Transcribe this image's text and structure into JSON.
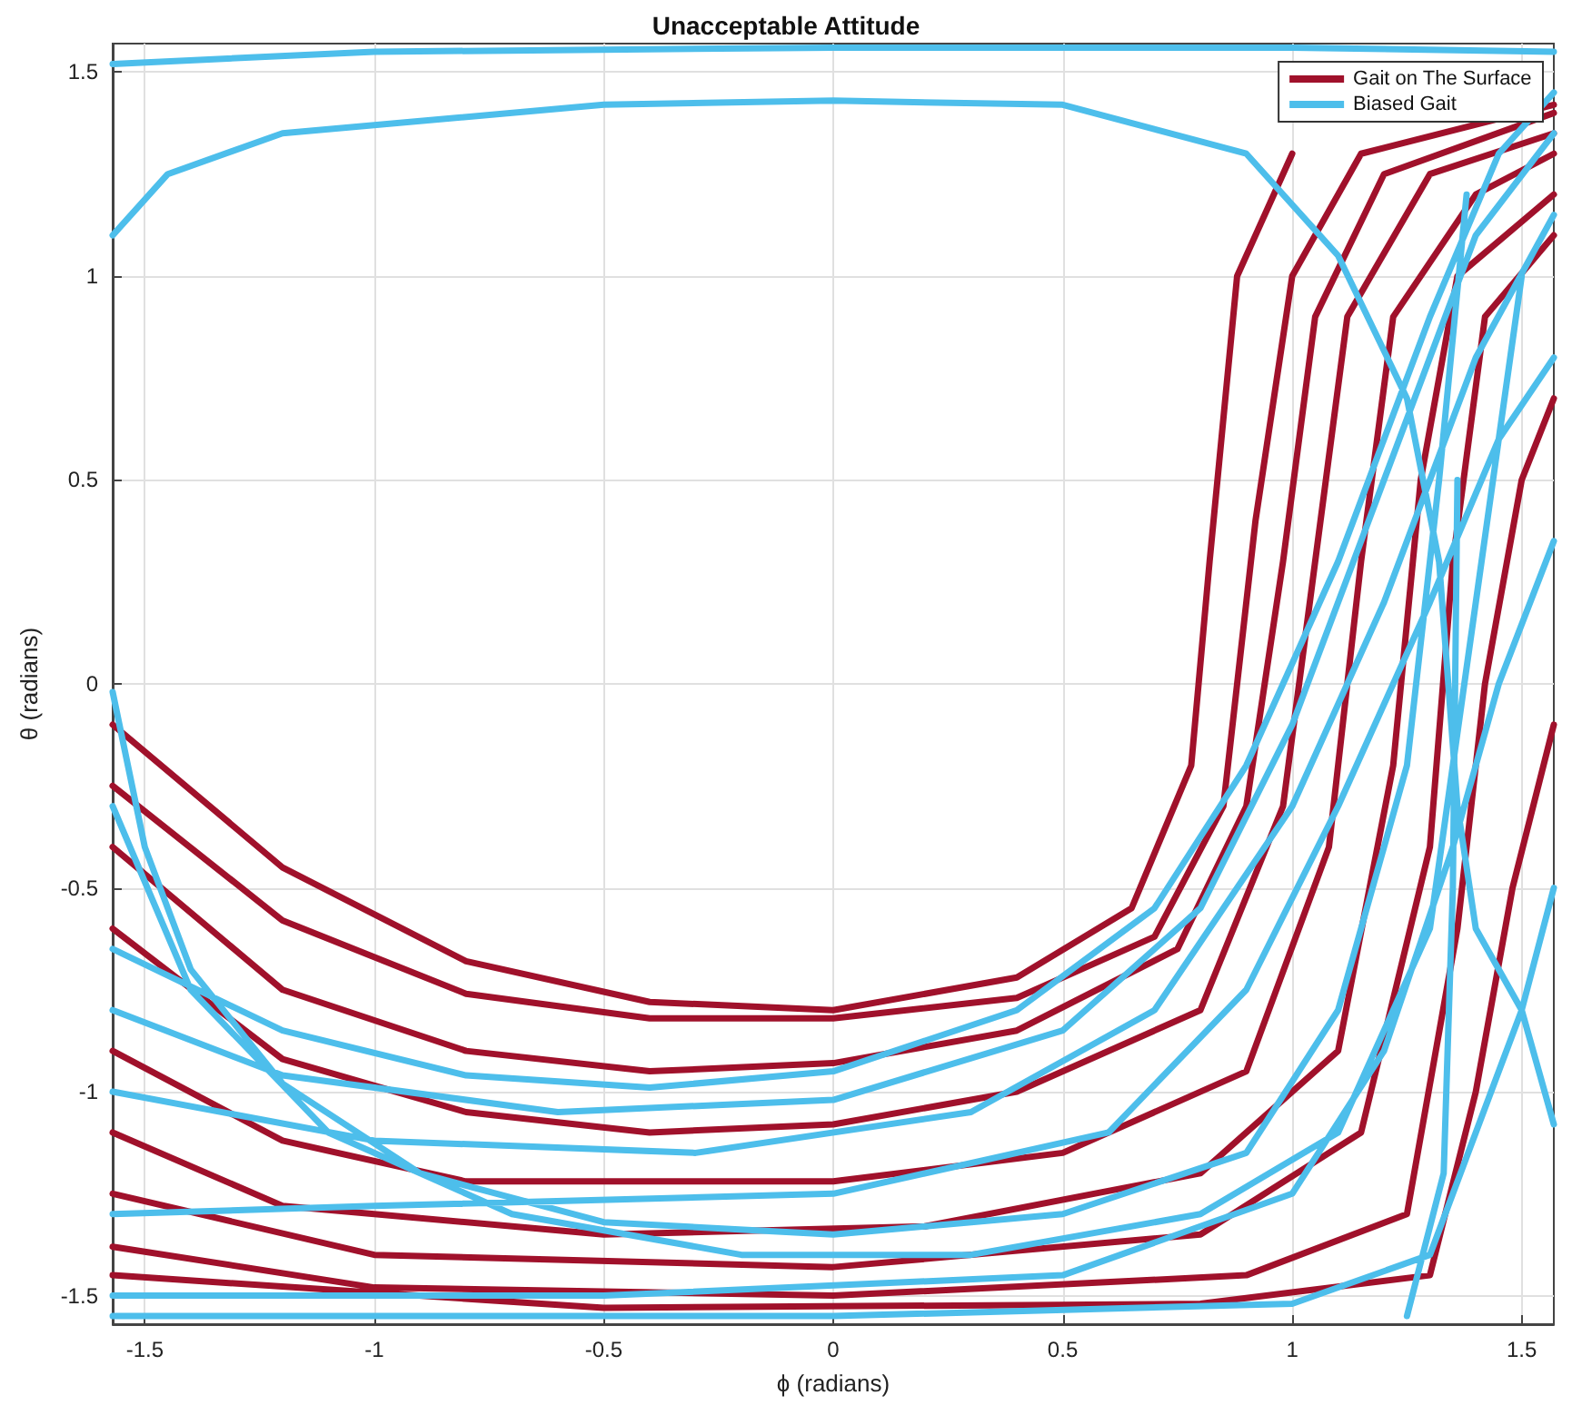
{
  "chart_data": {
    "type": "line",
    "title": "Unacceptable Attitude",
    "xlabel": "ϕ (radians)",
    "ylabel": "θ (radians)",
    "xlim": [
      -1.57,
      1.57
    ],
    "ylim": [
      -1.57,
      1.57
    ],
    "xticks": [
      -1.5,
      -1,
      -0.5,
      0,
      0.5,
      1,
      1.5
    ],
    "yticks": [
      -1.5,
      -1,
      -0.5,
      0,
      0.5,
      1,
      1.5
    ],
    "grid": true,
    "legend": "top right",
    "marker": "none",
    "line_style": "solid",
    "series": [
      {
        "name": "Gait on The Surface",
        "color": "#a0112b",
        "x": [
          -1.57,
          -1.2,
          -0.8,
          -0.4,
          0,
          0.4,
          0.65,
          0.78,
          0.82,
          0.88,
          1.0,
          null,
          -1.57,
          -1.2,
          -0.8,
          -0.4,
          0,
          0.4,
          0.7,
          0.85,
          0.92,
          1.0,
          1.15,
          1.57,
          null,
          -1.57,
          -1.2,
          -0.8,
          -0.4,
          0,
          0.4,
          0.75,
          0.9,
          0.98,
          1.05,
          1.2,
          1.57,
          null,
          -1.57,
          -1.2,
          -0.8,
          -0.4,
          0,
          0.4,
          0.8,
          0.98,
          1.05,
          1.12,
          1.3,
          1.57,
          null,
          -1.57,
          -1.2,
          -0.8,
          0,
          0.5,
          0.9,
          1.08,
          1.15,
          1.22,
          1.4,
          1.57,
          null,
          -1.57,
          -1.2,
          -0.5,
          0.2,
          0.8,
          1.1,
          1.22,
          1.28,
          1.36,
          1.57,
          null,
          -1.57,
          -1,
          0,
          0.8,
          1.15,
          1.3,
          1.35,
          1.42,
          1.57,
          null,
          -1.57,
          -1,
          0,
          0.9,
          1.25,
          1.36,
          1.42,
          1.5,
          1.57,
          null,
          -1.57,
          -0.5,
          0.8,
          1.3,
          1.4,
          1.48,
          1.57
        ],
        "values": [
          -0.1,
          -0.45,
          -0.68,
          -0.78,
          -0.8,
          -0.72,
          -0.55,
          -0.2,
          0.3,
          1.0,
          1.3,
          null,
          -0.25,
          -0.58,
          -0.76,
          -0.82,
          -0.82,
          -0.77,
          -0.62,
          -0.3,
          0.4,
          1.0,
          1.3,
          1.42,
          null,
          -0.4,
          -0.75,
          -0.9,
          -0.95,
          -0.93,
          -0.85,
          -0.65,
          -0.3,
          0.3,
          0.9,
          1.25,
          1.4,
          null,
          -0.6,
          -0.92,
          -1.05,
          -1.1,
          -1.08,
          -1.0,
          -0.8,
          -0.3,
          0.3,
          0.9,
          1.25,
          1.35,
          null,
          -0.9,
          -1.12,
          -1.22,
          -1.22,
          -1.15,
          -0.95,
          -0.4,
          0.3,
          0.9,
          1.2,
          1.3,
          null,
          -1.1,
          -1.28,
          -1.35,
          -1.33,
          -1.2,
          -0.9,
          -0.2,
          0.5,
          1.0,
          1.2,
          null,
          -1.25,
          -1.4,
          -1.43,
          -1.35,
          -1.1,
          -0.4,
          0.3,
          0.9,
          1.1,
          null,
          -1.38,
          -1.48,
          -1.5,
          -1.45,
          -1.3,
          -0.6,
          0.0,
          0.5,
          0.7,
          null,
          -1.45,
          -1.53,
          -1.52,
          -1.45,
          -1.0,
          -0.5,
          -0.1
        ]
      },
      {
        "name": "Biased Gait",
        "color": "#4dbeeb",
        "x": [
          -1.57,
          -1,
          0,
          1,
          1.57,
          null,
          -1.57,
          -1.45,
          -1.2,
          -0.5,
          0,
          0.5,
          0.9,
          1.1,
          1.25,
          1.32,
          1.36,
          1.4,
          1.5,
          1.57,
          null,
          -1.57,
          -1.5,
          -1.4,
          -1.2,
          -0.9,
          -0.5,
          0,
          0.5,
          0.9,
          1.1,
          1.25,
          1.32,
          1.38,
          null,
          -1.57,
          -1.2,
          -0.8,
          -0.4,
          0,
          0.4,
          0.7,
          0.9,
          1.1,
          1.3,
          1.45,
          1.57,
          null,
          -1.57,
          -1.2,
          -0.6,
          0,
          0.5,
          0.8,
          1.0,
          1.2,
          1.4,
          1.57,
          null,
          -1.57,
          -1,
          -0.3,
          0.3,
          0.7,
          1.0,
          1.2,
          1.4,
          1.57,
          null,
          -1.57,
          -1,
          0,
          0.6,
          0.9,
          1.1,
          1.3,
          1.45,
          1.57,
          null,
          -1.57,
          -0.5,
          0.5,
          1.0,
          1.2,
          1.35,
          1.45,
          1.57,
          null,
          -1.57,
          0,
          1.0,
          1.3,
          1.4,
          1.5,
          1.57,
          null,
          1.25,
          1.33,
          1.35,
          1.36,
          null,
          -1.57,
          -1.4,
          -1.1,
          -0.7,
          -0.2,
          0.3,
          0.8,
          1.1,
          1.3,
          1.4,
          1.5
        ],
        "values": [
          1.52,
          1.55,
          1.56,
          1.56,
          1.55,
          null,
          1.1,
          1.25,
          1.35,
          1.42,
          1.43,
          1.42,
          1.3,
          1.05,
          0.7,
          0.3,
          -0.3,
          -0.6,
          -0.8,
          -1.08,
          null,
          -0.02,
          -0.4,
          -0.7,
          -0.98,
          -1.2,
          -1.32,
          -1.35,
          -1.3,
          -1.15,
          -0.8,
          -0.2,
          0.5,
          1.2,
          null,
          -0.65,
          -0.85,
          -0.96,
          -0.99,
          -0.95,
          -0.8,
          -0.55,
          -0.2,
          0.3,
          0.9,
          1.3,
          1.45,
          null,
          -0.8,
          -0.96,
          -1.05,
          -1.02,
          -0.85,
          -0.55,
          -0.1,
          0.5,
          1.1,
          1.35,
          null,
          -1.0,
          -1.12,
          -1.15,
          -1.05,
          -0.8,
          -0.3,
          0.2,
          0.8,
          1.15,
          null,
          -1.3,
          -1.28,
          -1.25,
          -1.1,
          -0.75,
          -0.3,
          0.2,
          0.6,
          0.8,
          null,
          -1.5,
          -1.5,
          -1.45,
          -1.25,
          -0.9,
          -0.4,
          0,
          0.35,
          null,
          -1.55,
          -1.55,
          -1.52,
          -1.4,
          -1.1,
          -0.8,
          -0.5,
          null,
          -1.55,
          -1.2,
          -0.5,
          0.5,
          null,
          -0.3,
          -0.75,
          -1.1,
          -1.3,
          -1.4,
          -1.4,
          -1.3,
          -1.1,
          -0.6,
          0.2,
          1.0
        ]
      }
    ]
  }
}
